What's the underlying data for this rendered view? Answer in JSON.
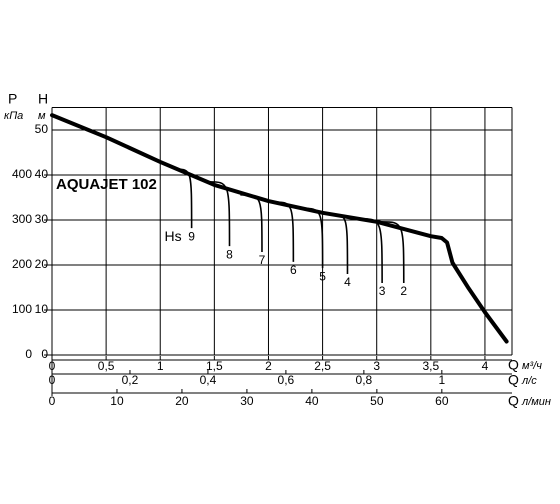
{
  "chart_data": {
    "type": "line",
    "title": "AQUAJET 102",
    "ylabel": "H",
    "y_units": "м",
    "y2label": "P",
    "y2_units": "кПа",
    "xlabel": "Q",
    "x_units": "м³/ч",
    "x2_units": "л/с",
    "x3_units": "л/мин",
    "xlim": [
      0,
      4.25
    ],
    "xticks": [
      0,
      {
        "value": 0.5,
        "label": "0,5"
      },
      1,
      {
        "value": 1.5,
        "label": "1,5"
      },
      2,
      {
        "value": 2.5,
        "label": "2,5"
      },
      3,
      {
        "value": 3.5,
        "label": "3,5"
      },
      4
    ],
    "x2lim": [
      0,
      1.18
    ],
    "x2ticks": [
      0,
      {
        "value": 0.2,
        "label": "0,2"
      },
      {
        "value": 0.4,
        "label": "0,4"
      },
      {
        "value": 0.6,
        "label": "0,6"
      },
      {
        "value": 0.8,
        "label": "0,8"
      },
      1
    ],
    "x3lim": [
      0,
      70.8
    ],
    "x3ticks": [
      0,
      10,
      20,
      30,
      40,
      50,
      60
    ],
    "ylim": [
      0,
      55
    ],
    "yticks": [
      0,
      10,
      20,
      30,
      40,
      50
    ],
    "y2lim": [
      0,
      550
    ],
    "y2ticks": [
      0,
      100,
      200,
      300,
      400
    ],
    "grid": true,
    "hs_label": "Hs",
    "series": [
      {
        "color": "#000000",
        "x": [
          0,
          0.5,
          1,
          1.5,
          2,
          2.5,
          3,
          3.5,
          3.6,
          3.65,
          3.7,
          3.85,
          4,
          4.2
        ],
        "values": [
          53.3,
          48.4,
          42.9,
          37.8,
          34.2,
          31.6,
          29.6,
          26.4,
          26,
          25,
          20.5,
          14.8,
          9.5,
          3
        ]
      },
      {
        "name": "9",
        "color": "#000000",
        "x": [
          1.14,
          1.29
        ],
        "values": [
          41.3,
          28.2
        ]
      },
      {
        "name": "8",
        "color": "#000000",
        "x": [
          1.44,
          1.64
        ],
        "values": [
          38.5,
          24.2
        ]
      },
      {
        "name": "7",
        "color": "#000000",
        "x": [
          1.74,
          1.94
        ],
        "values": [
          35.6,
          22.9
        ]
      },
      {
        "name": "6",
        "color": "#000000",
        "x": [
          2.04,
          2.23
        ],
        "values": [
          34,
          20.7
        ]
      },
      {
        "name": "5",
        "color": "#000000",
        "x": [
          2.3,
          2.5
        ],
        "values": [
          32.6,
          19.3
        ]
      },
      {
        "name": "4",
        "color": "#000000",
        "x": [
          2.57,
          2.73
        ],
        "values": [
          31.3,
          18
        ]
      },
      {
        "name": "3",
        "color": "#000000",
        "x": [
          2.83,
          3.05
        ],
        "values": [
          30.3,
          16
        ]
      },
      {
        "name": "2",
        "color": "#000000",
        "x": [
          3.04,
          3.25
        ],
        "values": [
          29.6,
          16
        ]
      }
    ]
  }
}
